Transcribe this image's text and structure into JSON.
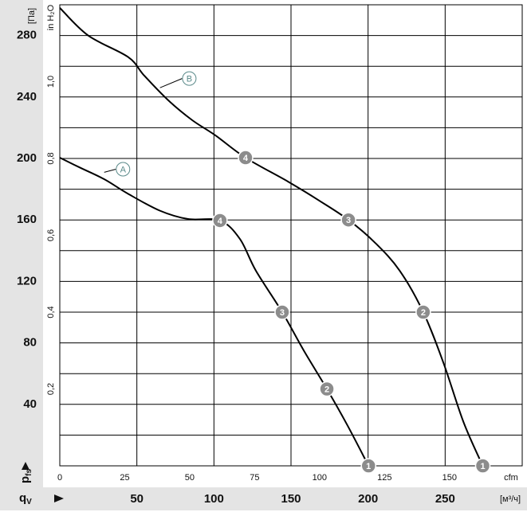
{
  "chart_data": {
    "type": "line",
    "y_label": "[Па]",
    "y_title": "p",
    "y_title_sub": "fs",
    "y2_label": "in H₂O",
    "x_title": "q",
    "x_title_sub": "V",
    "x_label": "[м³/ч]",
    "x2_label": "cfm",
    "xlim": [
      0,
      300
    ],
    "xticks": [
      50,
      100,
      150,
      200,
      250
    ],
    "x2lim": [
      0,
      178
    ],
    "x2ticks": [
      0,
      25,
      50,
      75,
      100,
      125,
      150
    ],
    "ylim": [
      0,
      300
    ],
    "yticks": [
      40,
      80,
      120,
      160,
      200,
      240,
      280
    ],
    "ygrid": [
      20,
      40,
      60,
      80,
      100,
      120,
      140,
      160,
      180,
      200,
      220,
      240,
      260,
      280
    ],
    "y2lim": [
      0,
      1.2
    ],
    "y2ticks": [
      {
        "value": 0.2,
        "label": "0,2"
      },
      {
        "value": 0.4,
        "label": "0,4"
      },
      {
        "value": 0.6,
        "label": "0,6"
      },
      {
        "value": 0.8,
        "label": "0,8"
      },
      {
        "value": 1.0,
        "label": "1,0"
      }
    ],
    "grid": true,
    "series": [
      {
        "name": "A",
        "color": "#000000",
        "x": [
          0,
          13.2,
          28.8,
          44.3,
          65,
          83.2,
          103.9,
          116.8,
          127.2,
          144.3,
          158.3,
          173.3,
          186.8,
          200.3
        ],
        "values": [
          200.5,
          194,
          186.5,
          177,
          166,
          160.6,
          159.6,
          147.7,
          127,
          100,
          75,
          50,
          26,
          0
        ],
        "point_labels": [
          null,
          null,
          null,
          null,
          null,
          null,
          "4",
          null,
          null,
          "3",
          null,
          "2",
          null,
          "1"
        ],
        "label_at": [
          28.8,
          191
        ],
        "tag_at": [
          41,
          193
        ]
      },
      {
        "name": "B",
        "color": "#000000",
        "x": [
          0,
          18.4,
          44.3,
          54.7,
          70.2,
          85.8,
          101,
          120.5,
          148,
          168.4,
          187.3,
          204.7,
          220.5,
          235.8,
          248.9,
          261.9,
          274.4
        ],
        "values": [
          298,
          280,
          266,
          254,
          238,
          225,
          215,
          200.5,
          185,
          172.5,
          160,
          145,
          127,
          100,
          67,
          28.5,
          0
        ],
        "point_labels": [
          null,
          null,
          null,
          null,
          null,
          null,
          null,
          "4",
          null,
          null,
          "3",
          null,
          null,
          "2",
          null,
          null,
          "1"
        ],
        "label_at": [
          65,
          246
        ],
        "tag_at": [
          84,
          252
        ]
      }
    ]
  }
}
